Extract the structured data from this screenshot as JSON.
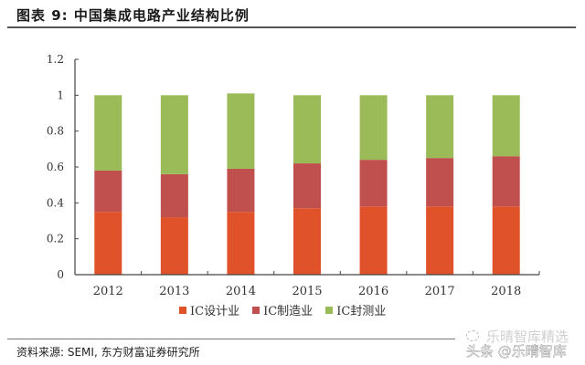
{
  "title": "图表 9: 中国集成电路产业结构比例",
  "source": "资料来源: SEMI, 东方财富证券研究所",
  "watermark": {
    "line1": "乐晴智库精选",
    "line2": "头条 @乐晴智库"
  },
  "colors": {
    "design": "#E0522A",
    "manufacturing": "#C0504D",
    "packaging": "#9BBB59",
    "axis": "#333333"
  },
  "legend": [
    {
      "label": "IC设计业",
      "color": "#E0522A"
    },
    {
      "label": "IC制造业",
      "color": "#C0504D"
    },
    {
      "label": "IC封测业",
      "color": "#9BBB59"
    }
  ],
  "chart_data": {
    "type": "bar",
    "stacked": true,
    "title": "中国集成电路产业结构比例",
    "xlabel": "",
    "ylabel": "",
    "ylim": [
      0,
      1.2
    ],
    "yticks": [
      "0",
      "0.2",
      "0.4",
      "0.6",
      "0.8",
      "1",
      "1.2"
    ],
    "categories": [
      "2012",
      "2013",
      "2014",
      "2015",
      "2016",
      "2017",
      "2018"
    ],
    "series": [
      {
        "name": "IC设计业",
        "values": [
          0.35,
          0.32,
          0.35,
          0.37,
          0.38,
          0.38,
          0.38
        ]
      },
      {
        "name": "IC制造业",
        "values": [
          0.23,
          0.24,
          0.24,
          0.25,
          0.26,
          0.27,
          0.28
        ]
      },
      {
        "name": "IC封测业",
        "values": [
          0.42,
          0.44,
          0.42,
          0.38,
          0.36,
          0.35,
          0.34
        ]
      }
    ],
    "legend_position": "bottom",
    "grid": false
  }
}
